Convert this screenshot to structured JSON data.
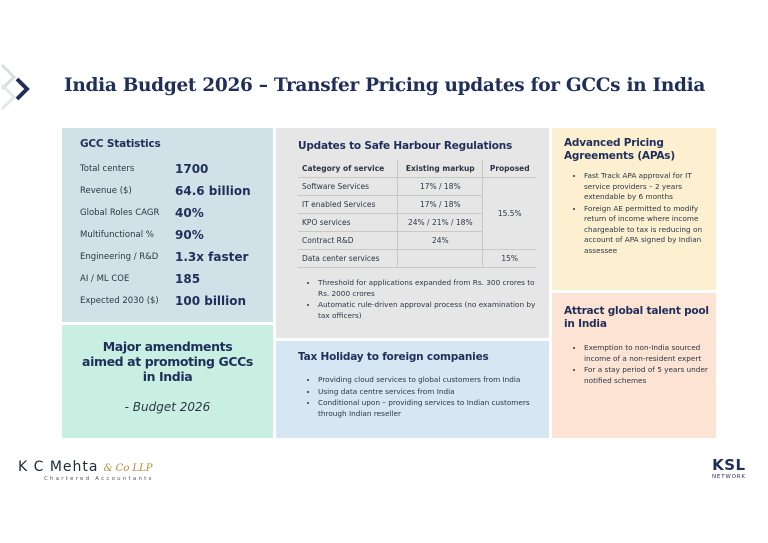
{
  "header": {
    "title": "India Budget 2026 – Transfer Pricing updates for GCCs in India"
  },
  "stats": {
    "title": "GCC Statistics",
    "rows": [
      {
        "label": "Total centers",
        "value": "1700"
      },
      {
        "label": "Revenue ($)",
        "value": "64.6 billion"
      },
      {
        "label": "Global Roles CAGR",
        "value": "40%"
      },
      {
        "label": "Multifunctional %",
        "value": "90%"
      },
      {
        "label": "Engineering / R&D",
        "value": "1.3x faster"
      },
      {
        "label": "AI / ML COE",
        "value": "185"
      },
      {
        "label": "Expected 2030 ($)",
        "value": "100 billion"
      }
    ]
  },
  "amendments": {
    "text": "Major amendments aimed at promoting GCCs in India",
    "source": "- Budget 2026"
  },
  "safe_harbour": {
    "title": "Updates to Safe Harbour Regulations",
    "columns": [
      "Category of service",
      "Existing markup",
      "Proposed"
    ],
    "rows": [
      {
        "service": "Software Services",
        "markup": "17% / 18%",
        "proposed": "15.5%"
      },
      {
        "service": "IT enabled Services",
        "markup": "17% / 18%"
      },
      {
        "service": "KPO services",
        "markup": "24% / 21% / 18%"
      },
      {
        "service": "Contract R&D",
        "markup": "24%"
      },
      {
        "service": "Data center services",
        "proposed": "15%"
      }
    ],
    "bullets": [
      "Threshold for applications expanded from Rs. 300 crores to Rs. 2000 crores",
      "Automatic rule-driven approval process (no examination by tax officers)"
    ]
  },
  "tax_holiday": {
    "title": "Tax Holiday to foreign companies",
    "bullets": [
      "Providing cloud services to global customers from India",
      "Using data centre services from India",
      "Conditional upon – providing services to Indian customers through Indian reseller"
    ]
  },
  "apa": {
    "title": "Advanced Pricing Agreements (APAs)",
    "bullets": [
      "Fast Track APA approval for IT service providers – 2 years extendable by 6 months",
      "Foreign AE permitted to modify return of income where income chargeable to tax is reducing on account of APA signed by Indian assessee"
    ]
  },
  "talent": {
    "title": "Attract global talent pool in India",
    "bullets": [
      "Exemption to non-India sourced income of a non-resident expert",
      "For a stay period of 5 years under notified schemes"
    ]
  },
  "footer": {
    "firm": "K C Mehta",
    "firm_suffix": "& Co LLP",
    "firm_tagline": "Chartered Accountants",
    "network": "KSL",
    "network_tagline": "NETWORK"
  }
}
